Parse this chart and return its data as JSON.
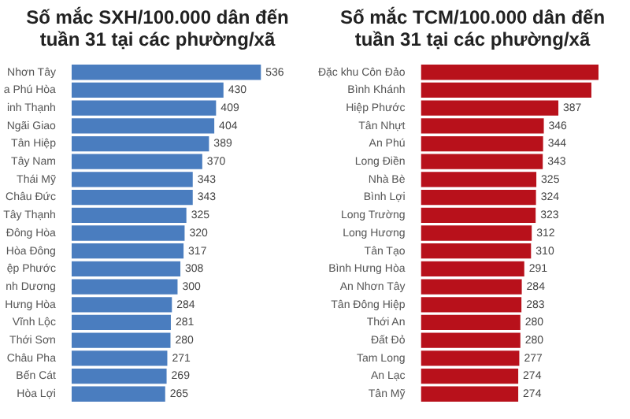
{
  "chart_data": [
    {
      "type": "bar",
      "orientation": "horizontal",
      "title": "Số mắc SXH/100.000 dân đến tuần 31 tại các phường/xã",
      "data_labels": true,
      "color": "#4a7dbf",
      "categories": [
        "Nhơn Tây",
        "a Phú Hòa",
        "inh Thạnh",
        "Ngãi Giao",
        "Tân Hiệp",
        "Tây Nam",
        "Thái Mỹ",
        "Châu Đức",
        "Tây Thạnh",
        "Đông Hòa",
        "Hòa Đông",
        "ệp Phước",
        "nh Dương",
        "Hưng Hòa",
        "Vĩnh Lộc",
        "Thới Sơn",
        "Châu Pha",
        "Bến Cát",
        "Hòa Lợi"
      ],
      "values": [
        536,
        430,
        409,
        404,
        389,
        370,
        343,
        343,
        325,
        320,
        317,
        308,
        300,
        284,
        281,
        280,
        271,
        269,
        265
      ]
    },
    {
      "type": "bar",
      "orientation": "horizontal",
      "title": "Số mắc TCM/100.000 dân đến tuần 31 tại các phường/xã",
      "color": "#b8111b",
      "categories": [
        "Đặc khu Côn Đảo",
        "Bình Khánh",
        "Hiệp Phước",
        "Tân Nhựt",
        "An Phú",
        "Long Điền",
        "Nhà Bè",
        "Bình Lợi",
        "Long Trường",
        "Long Hương",
        "Tân Tạo",
        "Bình Hưng Hòa",
        "An Nhơn Tây",
        "Tân Đông Hiệp",
        "Thới An",
        "Đất Đỏ",
        "Tam Long",
        "An Lạc",
        "Tân Mỹ"
      ],
      "values": [
        500,
        480,
        387,
        346,
        344,
        343,
        325,
        324,
        323,
        312,
        310,
        291,
        284,
        283,
        280,
        280,
        277,
        274,
        274
      ],
      "value_labels": [
        null,
        null,
        "387",
        "346",
        "344",
        "343",
        "325",
        "324",
        "323",
        "312",
        "310",
        "291",
        "284",
        "283",
        "280",
        "280",
        "277",
        "274",
        "274"
      ]
    }
  ]
}
